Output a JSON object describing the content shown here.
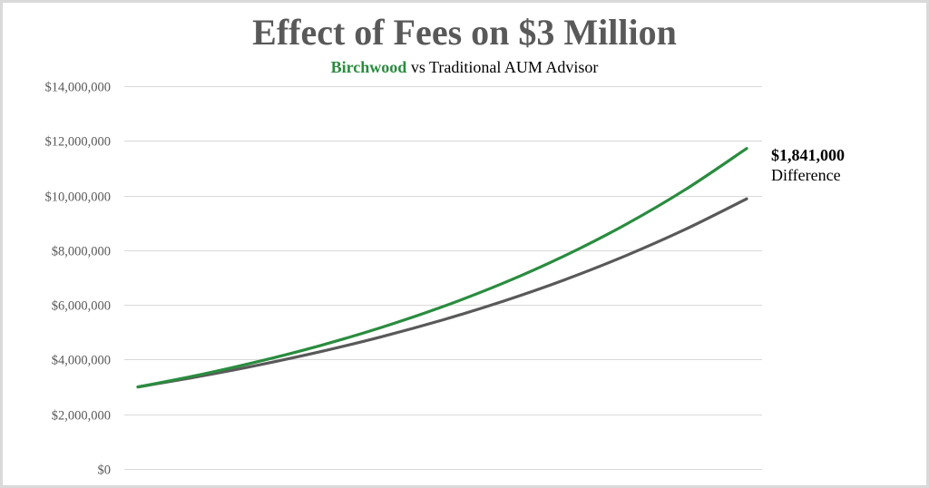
{
  "header": {
    "title": "Effect of Fees on $3 Million",
    "subtitle_brand": "Birchwood",
    "subtitle_rest": " vs Traditional AUM Advisor"
  },
  "annotation": {
    "amount": "$1,841,000",
    "label": "Difference"
  },
  "colors": {
    "birchwood": "#2a8c3f",
    "traditional": "#595959",
    "grid": "#d9d9d9",
    "title": "#595959"
  },
  "chart_data": {
    "type": "line",
    "title": "Effect of Fees on $3 Million",
    "subtitle": "Birchwood vs Traditional AUM Advisor",
    "xlabel": "",
    "ylabel": "",
    "x": [
      0,
      1,
      2,
      3,
      4,
      5,
      6,
      7,
      8,
      9,
      10
    ],
    "ylim": [
      0,
      14000000
    ],
    "yticks": [
      0,
      2000000,
      4000000,
      6000000,
      8000000,
      10000000,
      12000000,
      14000000
    ],
    "ytick_labels": [
      "$0",
      "$2,000,000",
      "$4,000,000",
      "$6,000,000",
      "$8,000,000",
      "$10,000,000",
      "$12,000,000",
      "$14,000,000"
    ],
    "grid": true,
    "legend": "none (series identified by subtitle color)",
    "series": [
      {
        "name": "Birchwood",
        "color": "#2a8c3f",
        "values": [
          3000000,
          3438000,
          3940000,
          4515000,
          5174000,
          5930000,
          6795000,
          7787000,
          8924000,
          10227000,
          11720000
        ]
      },
      {
        "name": "Traditional AUM Advisor",
        "color": "#595959",
        "values": [
          3000000,
          3380000,
          3808000,
          4290000,
          4833000,
          5445000,
          6135000,
          6912000,
          7787000,
          8773000,
          9879000
        ]
      }
    ],
    "annotations": [
      {
        "text": "$1,841,000",
        "subtext": "Difference",
        "position": "right of line ends"
      }
    ]
  }
}
